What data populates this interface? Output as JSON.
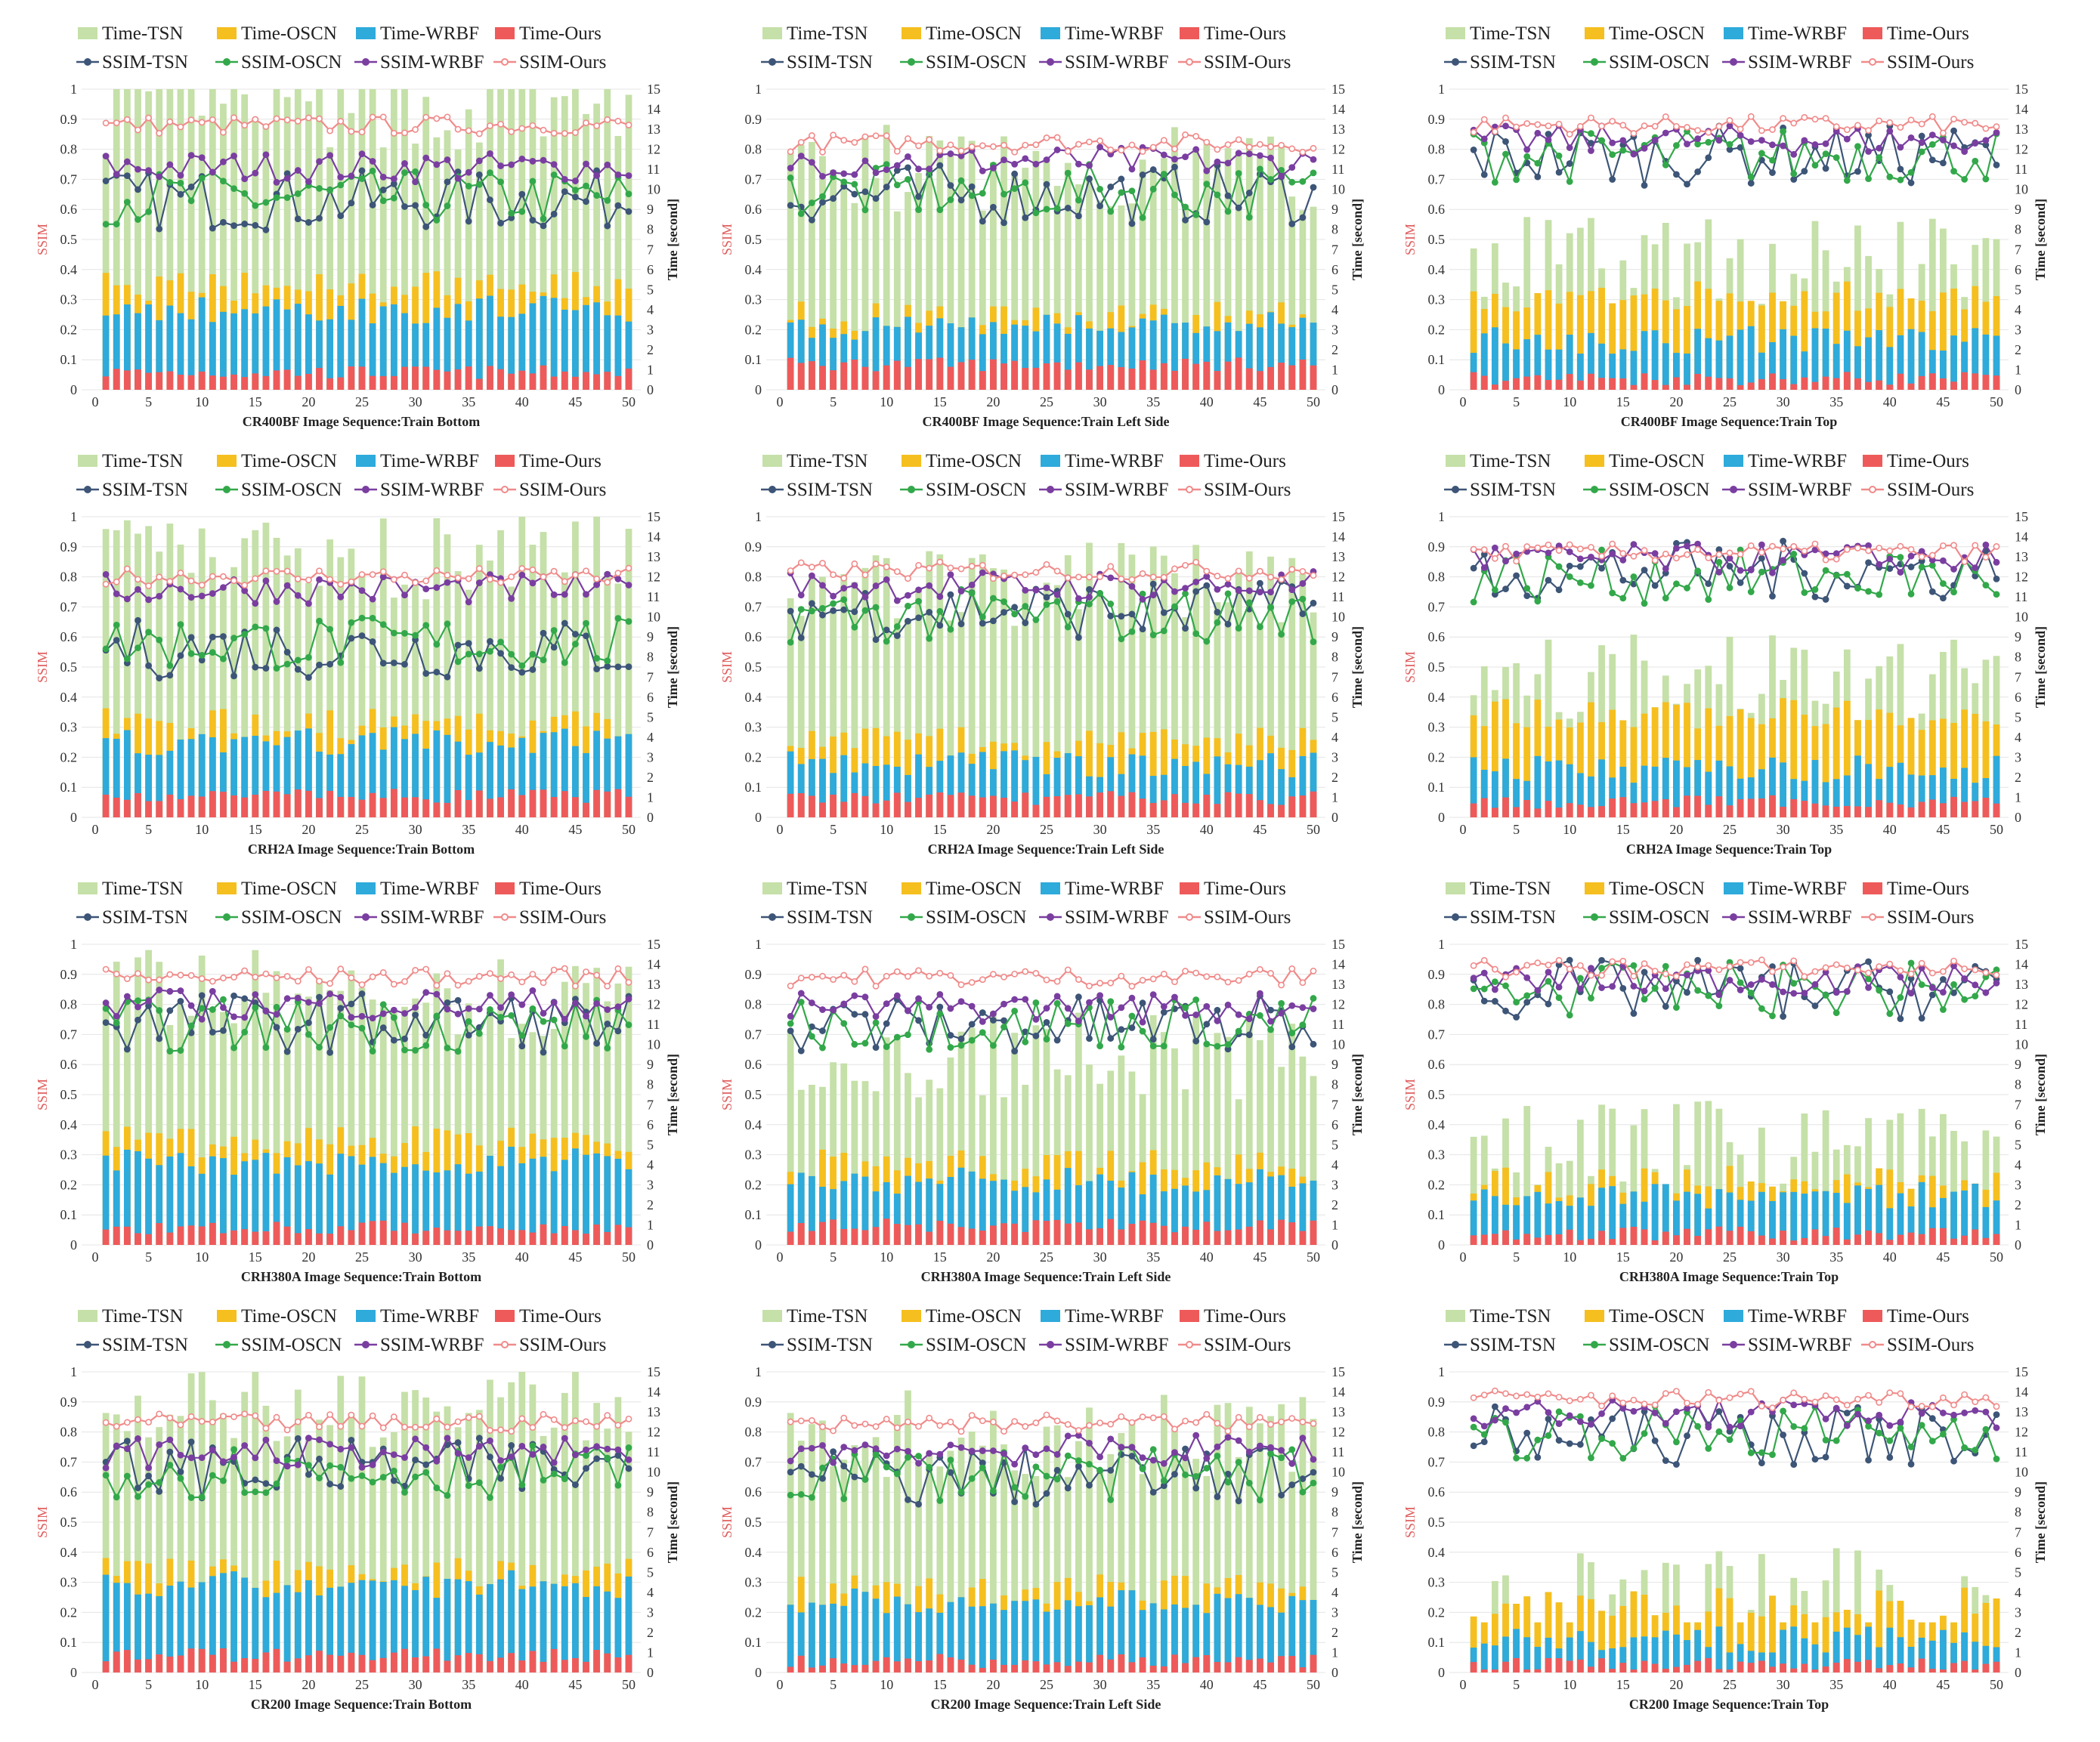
{
  "legend": {
    "time_tsn": "Time-TSN",
    "time_oscn": "Time-OSCN",
    "time_wrbf": "Time-WRBF",
    "time_ours": "Time-Ours",
    "ssim_tsn": "SSIM-TSN",
    "ssim_oscn": "SSIM-OSCN",
    "ssim_wrbf": "SSIM-WRBF",
    "ssim_ours": "SSIM-Ours"
  },
  "colors": {
    "time_tsn": "#c5e0a8",
    "time_oscn": "#f5bf1f",
    "time_wrbf": "#2eaadb",
    "time_ours": "#ee5a5a",
    "ssim_tsn": "#3d5577",
    "ssim_oscn": "#33a84a",
    "ssim_wrbf": "#7a3ea0",
    "ssim_ours": "#f08a8a"
  },
  "axes": {
    "left_label": "SSIM",
    "right_label": "Time [second]",
    "left_ticks": [
      "0",
      "0.1",
      "0.2",
      "0.3",
      "0.4",
      "0.5",
      "0.6",
      "0.7",
      "0.8",
      "0.9",
      "1"
    ],
    "right_ticks": [
      "0",
      "1",
      "2",
      "3",
      "4",
      "5",
      "6",
      "7",
      "8",
      "9",
      "10",
      "11",
      "12",
      "13",
      "14",
      "15"
    ],
    "x_ticks": [
      "0",
      "5",
      "10",
      "15",
      "20",
      "25",
      "30",
      "35",
      "40",
      "45",
      "50"
    ]
  },
  "chart_data": [
    {
      "type": "bar+line",
      "title": "CR400BF Image Sequence:Train Bottom",
      "x": "1..50",
      "ylim_left": [
        0,
        1
      ],
      "ylim_right": [
        0,
        15
      ],
      "ssim_ours_avg": 0.88,
      "ssim_wrbf_avg": 0.74,
      "ssim_oscn_avg": 0.64,
      "ssim_tsn_avg": 0.63,
      "time_tsn_avg": 14.0,
      "time_oscn_avg": 5.0,
      "time_wrbf_avg": 4.0,
      "time_ours_avg": 0.8
    },
    {
      "type": "bar+line",
      "title": "CR400BF Image Sequence:Train Left Side",
      "x": "1..50",
      "ylim_left": [
        0,
        1
      ],
      "ylim_right": [
        0,
        15
      ],
      "ssim_ours_avg": 0.82,
      "ssim_wrbf_avg": 0.76,
      "ssim_oscn_avg": 0.66,
      "ssim_tsn_avg": 0.65,
      "time_tsn_avg": 11.0,
      "time_oscn_avg": 3.5,
      "time_wrbf_avg": 3.2,
      "time_ours_avg": 1.2
    },
    {
      "type": "bar+line",
      "title": "CR400BF Image Sequence:Train Top",
      "x": "1..50",
      "ylim_left": [
        0,
        1
      ],
      "ylim_right": [
        0,
        15
      ],
      "ssim_ours_avg": 0.88,
      "ssim_wrbf_avg": 0.83,
      "ssim_oscn_avg": 0.78,
      "ssim_tsn_avg": 0.78,
      "time_tsn_avg": 6.5,
      "time_oscn_avg": 4.5,
      "time_wrbf_avg": 2.5,
      "time_ours_avg": 0.5
    },
    {
      "type": "bar+line",
      "title": "CRH2A Image Sequence:Train Bottom",
      "x": "1..50",
      "ylim_left": [
        0,
        1
      ],
      "ylim_right": [
        0,
        15
      ],
      "ssim_ours_avg": 0.8,
      "ssim_wrbf_avg": 0.76,
      "ssim_oscn_avg": 0.58,
      "ssim_tsn_avg": 0.56,
      "time_tsn_avg": 13.0,
      "time_oscn_avg": 4.5,
      "time_wrbf_avg": 3.8,
      "time_ours_avg": 1.0
    },
    {
      "type": "bar+line",
      "title": "CRH2A Image Sequence:Train Left Side",
      "x": "1..50",
      "ylim_left": [
        0,
        1
      ],
      "ylim_right": [
        0,
        15
      ],
      "ssim_ours_avg": 0.82,
      "ssim_wrbf_avg": 0.77,
      "ssim_oscn_avg": 0.67,
      "ssim_tsn_avg": 0.69,
      "time_tsn_avg": 11.5,
      "time_oscn_avg": 3.6,
      "time_wrbf_avg": 2.7,
      "time_ours_avg": 0.9
    },
    {
      "type": "bar+line",
      "title": "CRH2A Image Sequence:Train Top",
      "x": "1..50",
      "ylim_left": [
        0,
        1
      ],
      "ylim_right": [
        0,
        15
      ],
      "ssim_ours_avg": 0.88,
      "ssim_wrbf_avg": 0.86,
      "ssim_oscn_avg": 0.8,
      "ssim_tsn_avg": 0.82,
      "time_tsn_avg": 7.0,
      "time_oscn_avg": 5.0,
      "time_wrbf_avg": 2.4,
      "time_ours_avg": 0.7
    },
    {
      "type": "bar+line",
      "title": "CRH380A Image Sequence:Train Bottom",
      "x": "1..50",
      "ylim_left": [
        0,
        1
      ],
      "ylim_right": [
        0,
        15
      ],
      "ssim_ours_avg": 0.89,
      "ssim_wrbf_avg": 0.8,
      "ssim_oscn_avg": 0.73,
      "ssim_tsn_avg": 0.74,
      "time_tsn_avg": 12.5,
      "time_oscn_avg": 5.0,
      "time_wrbf_avg": 4.2,
      "time_ours_avg": 0.8
    },
    {
      "type": "bar+line",
      "title": "CRH380A Image Sequence:Train Left Side",
      "x": "1..50",
      "ylim_left": [
        0,
        1
      ],
      "ylim_right": [
        0,
        15
      ],
      "ssim_ours_avg": 0.89,
      "ssim_wrbf_avg": 0.79,
      "ssim_oscn_avg": 0.74,
      "ssim_tsn_avg": 0.73,
      "time_tsn_avg": 9.5,
      "time_oscn_avg": 3.8,
      "time_wrbf_avg": 3.2,
      "time_ours_avg": 0.9
    },
    {
      "type": "bar+line",
      "title": "CRH380A Image Sequence:Train Top",
      "x": "1..50",
      "ylim_left": [
        0,
        1
      ],
      "ylim_right": [
        0,
        15
      ],
      "ssim_ours_avg": 0.92,
      "ssim_wrbf_avg": 0.88,
      "ssim_oscn_avg": 0.85,
      "ssim_tsn_avg": 0.85,
      "time_tsn_avg": 5.0,
      "time_oscn_avg": 3.0,
      "time_wrbf_avg": 2.5,
      "time_ours_avg": 0.5
    },
    {
      "type": "bar+line",
      "title": "CR200 Image Sequence:Train Bottom",
      "x": "1..50",
      "ylim_left": [
        0,
        1
      ],
      "ylim_right": [
        0,
        15
      ],
      "ssim_ours_avg": 0.83,
      "ssim_wrbf_avg": 0.73,
      "ssim_oscn_avg": 0.67,
      "ssim_tsn_avg": 0.68,
      "time_tsn_avg": 13.5,
      "time_oscn_avg": 4.8,
      "time_wrbf_avg": 4.4,
      "time_ours_avg": 0.8
    },
    {
      "type": "bar+line",
      "title": "CR200 Image Sequence:Train Left Side",
      "x": "1..50",
      "ylim_left": [
        0,
        1
      ],
      "ylim_right": [
        0,
        15
      ],
      "ssim_ours_avg": 0.83,
      "ssim_wrbf_avg": 0.74,
      "ssim_oscn_avg": 0.66,
      "ssim_tsn_avg": 0.65,
      "time_tsn_avg": 12.0,
      "time_oscn_avg": 4.0,
      "time_wrbf_avg": 3.6,
      "time_ours_avg": 0.5
    },
    {
      "type": "bar+line",
      "title": "CR200 Image Sequence:Train Top",
      "x": "1..50",
      "ylim_left": [
        0,
        1
      ],
      "ylim_right": [
        0,
        15
      ],
      "ssim_ours_avg": 0.91,
      "ssim_wrbf_avg": 0.86,
      "ssim_oscn_avg": 0.8,
      "ssim_tsn_avg": 0.79,
      "time_tsn_avg": 4.0,
      "time_oscn_avg": 3.4,
      "time_wrbf_avg": 1.6,
      "time_ours_avg": 0.3
    }
  ]
}
